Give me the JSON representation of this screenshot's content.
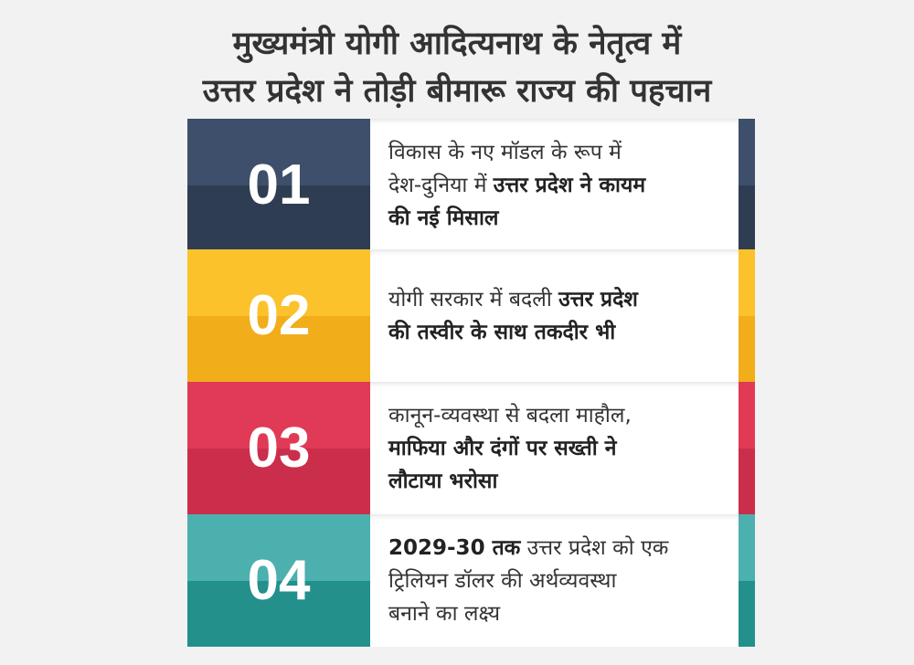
{
  "title": {
    "line1": "मुख्यमंत्री योगी आदित्यनाथ के नेतृत्व में",
    "line2": "उत्तर प्रदेश ने तोड़ी बीमारू राज्य की पहचान"
  },
  "items": [
    {
      "number": "01",
      "color_top": "#3e4f6b",
      "color_bottom": "#2f3d52",
      "lines": [
        [
          {
            "text": "विकास के नए मॉडल के रूप में",
            "bold": false
          }
        ],
        [
          {
            "text": "देश-दुनिया में ",
            "bold": false
          },
          {
            "text": "उत्तर प्रदेश ने कायम",
            "bold": true
          }
        ],
        [
          {
            "text": "की नई मिसाल",
            "bold": true
          }
        ]
      ]
    },
    {
      "number": "02",
      "color_top": "#fbc22b",
      "color_bottom": "#f1ae1a",
      "lines": [
        [
          {
            "text": "योगी सरकार में बदली ",
            "bold": false
          },
          {
            "text": "उत्तर प्रदेश",
            "bold": true
          }
        ],
        [
          {
            "text": "की तस्वीर के साथ तकदीर भी",
            "bold": true
          }
        ]
      ]
    },
    {
      "number": "03",
      "color_top": "#e03a56",
      "color_bottom": "#cb2e4b",
      "lines": [
        [
          {
            "text": "कानून-व्यवस्था से बदला माहौल,",
            "bold": false
          }
        ],
        [
          {
            "text": "माफिया और दंगों पर सख्ती ने",
            "bold": true
          }
        ],
        [
          {
            "text": "लौटाया भरोसा",
            "bold": true
          }
        ]
      ]
    },
    {
      "number": "04",
      "color_top": "#4bb0ae",
      "color_bottom": "#23908c",
      "lines": [
        [
          {
            "text": "2029-30 तक",
            "bold": true
          },
          {
            "text": " उत्तर प्रदेश को एक",
            "bold": false
          }
        ],
        [
          {
            "text": "ट्रिलियन डॉलर की अर्थव्यवस्था",
            "bold": false
          }
        ],
        [
          {
            "text": "बनाने का लक्ष्य",
            "bold": false
          }
        ]
      ]
    }
  ]
}
